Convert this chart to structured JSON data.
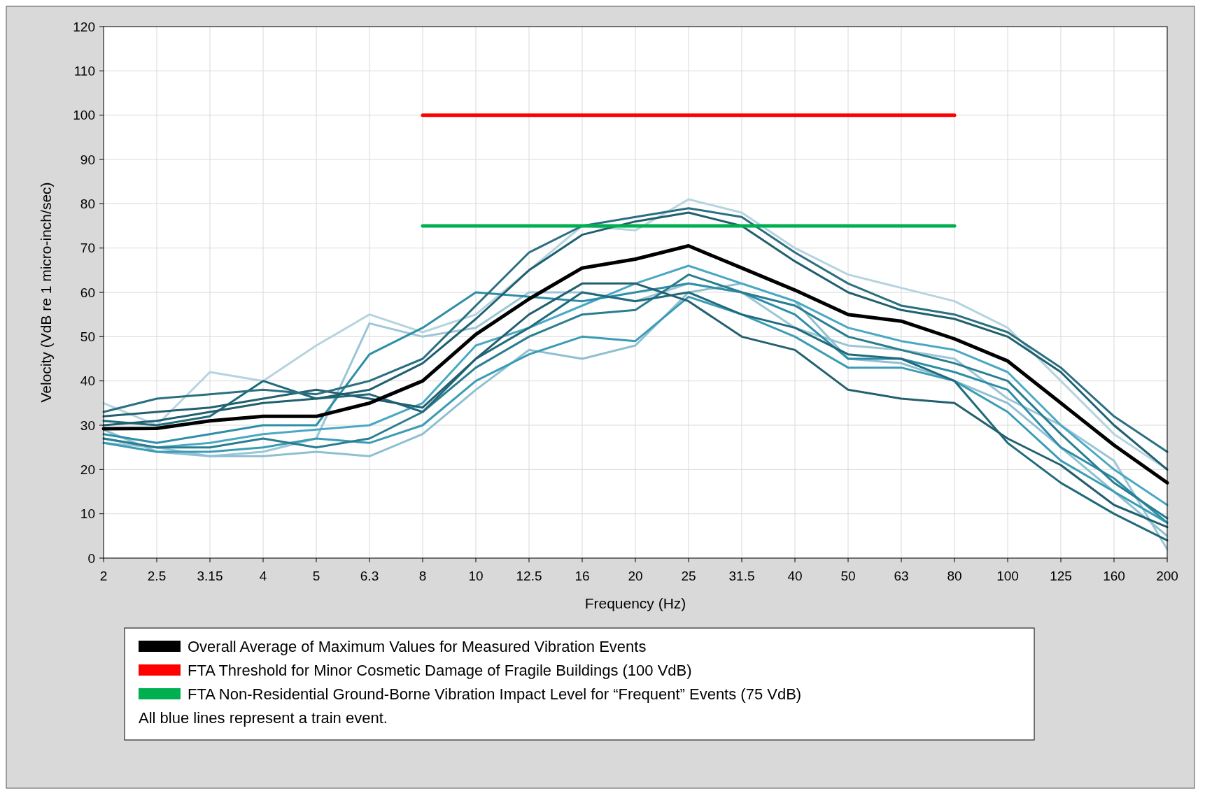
{
  "chart_data": {
    "type": "line",
    "xlabel": "Frequency (Hz)",
    "ylabel": "Velocity (VdB re 1 micro-inch/sec)",
    "categories": [
      "2",
      "2.5",
      "3.15",
      "4",
      "5",
      "6.3",
      "8",
      "10",
      "12.5",
      "16",
      "20",
      "25",
      "31.5",
      "40",
      "50",
      "63",
      "80",
      "100",
      "125",
      "160",
      "200"
    ],
    "ylim": [
      0,
      120
    ],
    "yticks": [
      0,
      10,
      20,
      30,
      40,
      50,
      60,
      70,
      80,
      90,
      100,
      110,
      120
    ],
    "grid": true,
    "legend": "bottom",
    "marker": "none",
    "line_style": "solid",
    "annotations": [
      "All blue lines represent a train event."
    ],
    "series": [
      {
        "color": "#b5d4e0",
        "values": [
          35,
          30,
          42,
          40,
          48,
          55,
          51,
          55,
          65,
          75,
          74,
          81,
          78,
          70,
          64,
          61,
          58,
          52,
          40,
          28,
          20
        ]
      },
      {
        "color": "#9cc6d6",
        "values": [
          26,
          25,
          23,
          24,
          27,
          53,
          50,
          52,
          60,
          60,
          58,
          62,
          60,
          52,
          48,
          47,
          45,
          36,
          30,
          22,
          2
        ]
      },
      {
        "color": "#8fbfd1",
        "values": [
          29,
          24,
          23,
          23,
          24,
          23,
          28,
          38,
          47,
          45,
          48,
          60,
          62,
          58,
          45,
          44,
          40,
          35,
          25,
          15,
          5
        ]
      },
      {
        "color": "#4aa8c4",
        "values": [
          27,
          25,
          26,
          28,
          29,
          30,
          35,
          48,
          52,
          57,
          62,
          66,
          62,
          58,
          52,
          49,
          47,
          42,
          30,
          20,
          12
        ]
      },
      {
        "color": "#3a9cb5",
        "values": [
          26,
          24,
          24,
          25,
          27,
          26,
          30,
          40,
          46,
          50,
          49,
          59,
          55,
          50,
          43,
          43,
          40,
          33,
          22,
          15,
          8
        ]
      },
      {
        "color": "#2e8ea8",
        "values": [
          28,
          26,
          28,
          30,
          30,
          46,
          52,
          60,
          59,
          58,
          60,
          62,
          60,
          55,
          45,
          45,
          42,
          38,
          25,
          18,
          8
        ]
      },
      {
        "color": "#2a7d8f",
        "values": [
          27,
          25,
          25,
          27,
          25,
          27,
          33,
          43,
          50,
          55,
          56,
          64,
          60,
          57,
          50,
          47,
          44,
          40,
          28,
          17,
          9
        ]
      },
      {
        "color": "#1f6a7b",
        "values": [
          31,
          30,
          32,
          40,
          36,
          37,
          33,
          45,
          52,
          60,
          58,
          60,
          55,
          52,
          46,
          45,
          40,
          26,
          17,
          10,
          4
        ]
      },
      {
        "color": "#235f6e",
        "values": [
          32,
          33,
          34,
          36,
          38,
          36,
          34,
          45,
          55,
          62,
          62,
          58,
          50,
          47,
          38,
          36,
          35,
          27,
          21,
          12,
          7
        ]
      },
      {
        "color": "#1f5f6e",
        "values": [
          30,
          31,
          33,
          35,
          36,
          38,
          44,
          54,
          65,
          73,
          76,
          78,
          75,
          67,
          60,
          56,
          54,
          50,
          42,
          30,
          20
        ]
      },
      {
        "color": "#2b6f80",
        "values": [
          33,
          36,
          37,
          38,
          37,
          40,
          45,
          57,
          69,
          75,
          77,
          79,
          77,
          69,
          62,
          57,
          55,
          51,
          43,
          32,
          24
        ]
      },
      {
        "name": "Overall Average of Maximum Values for Measured Vibration Events",
        "color": "#000000",
        "values": [
          29.2,
          29.3,
          31,
          32,
          32,
          35,
          40,
          50.5,
          58.5,
          65.5,
          67.5,
          70.5,
          65.5,
          60.5,
          55,
          53.5,
          49.5,
          44.5,
          35,
          25.5,
          17
        ]
      },
      {
        "name": "FTA Threshold for Minor Cosmetic Damage of Fragile Buildings (100 VdB)",
        "color": "#ff0000",
        "values": [
          null,
          null,
          null,
          null,
          null,
          null,
          100,
          100,
          100,
          100,
          100,
          100,
          100,
          100,
          100,
          100,
          100,
          null,
          null,
          null,
          null
        ]
      },
      {
        "name": "FTA Non-Residential Ground-Borne Vibration Impact Level for “Frequent” Events (75 VdB)",
        "color": "#00b050",
        "values": [
          null,
          null,
          null,
          null,
          null,
          null,
          75,
          75,
          75,
          75,
          75,
          75,
          75,
          75,
          75,
          75,
          75,
          null,
          null,
          null,
          null
        ]
      }
    ]
  }
}
